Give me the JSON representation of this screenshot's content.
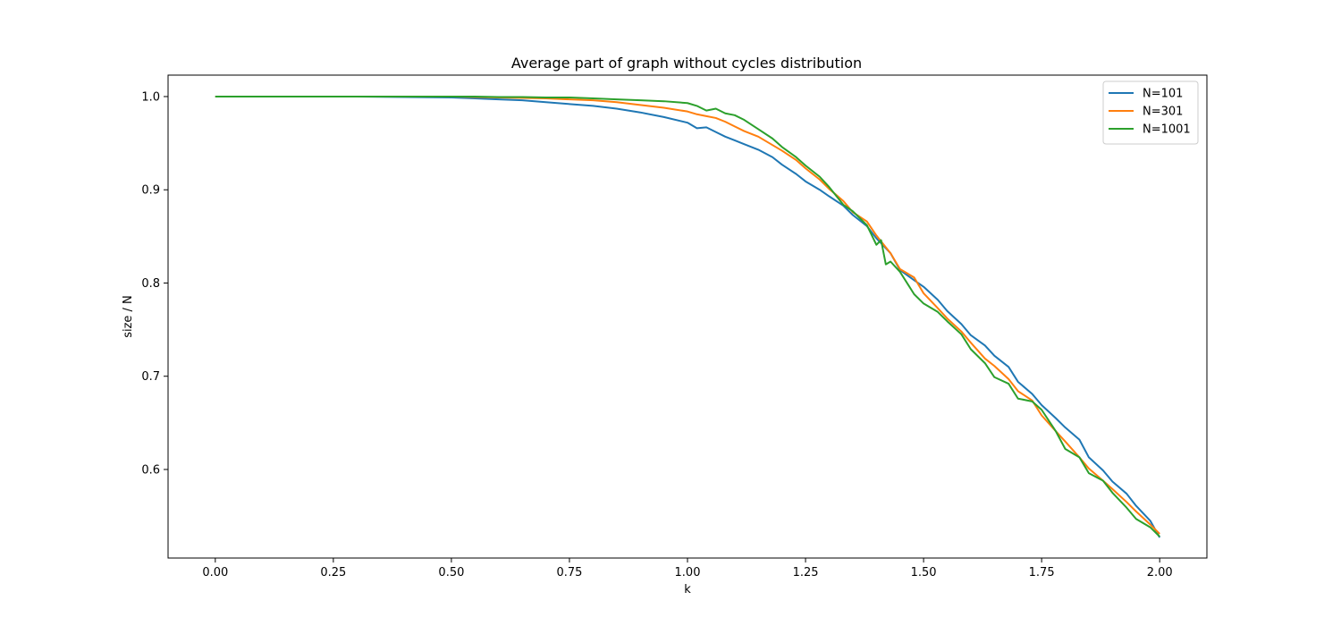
{
  "chart_data": {
    "type": "line",
    "title": "Average part of graph without cycles distribution",
    "xlabel": "k",
    "ylabel": "size / N",
    "xlim": [
      -0.1,
      2.1
    ],
    "ylim": [
      0.505,
      1.023
    ],
    "xticks": [
      0.0,
      0.25,
      0.5,
      0.75,
      1.0,
      1.25,
      1.5,
      1.75,
      2.0
    ],
    "xtick_labels": [
      "0.00",
      "0.25",
      "0.50",
      "0.75",
      "1.00",
      "1.25",
      "1.50",
      "1.75",
      "2.00"
    ],
    "yticks": [
      0.6,
      0.7,
      0.8,
      0.9,
      1.0
    ],
    "ytick_labels": [
      "0.6",
      "0.7",
      "0.8",
      "0.9",
      "1.0"
    ],
    "grid": false,
    "legend_position": "top-right",
    "series": [
      {
        "name": "N=101",
        "color": "#1f77b4",
        "x": [
          0.0,
          0.1,
          0.2,
          0.3,
          0.4,
          0.5,
          0.55,
          0.6,
          0.65,
          0.7,
          0.75,
          0.8,
          0.85,
          0.9,
          0.95,
          1.0,
          1.02,
          1.04,
          1.06,
          1.08,
          1.1,
          1.12,
          1.15,
          1.18,
          1.2,
          1.23,
          1.25,
          1.28,
          1.3,
          1.33,
          1.35,
          1.38,
          1.4,
          1.43,
          1.45,
          1.48,
          1.5,
          1.53,
          1.55,
          1.58,
          1.6,
          1.63,
          1.65,
          1.68,
          1.7,
          1.73,
          1.75,
          1.78,
          1.8,
          1.83,
          1.85,
          1.88,
          1.9,
          1.93,
          1.95,
          1.98,
          2.0
        ],
        "y": [
          1.0,
          1.0,
          1.0,
          1.0,
          0.9995,
          0.999,
          0.998,
          0.997,
          0.996,
          0.994,
          0.992,
          0.99,
          0.987,
          0.983,
          0.978,
          0.972,
          0.966,
          0.967,
          0.962,
          0.957,
          0.953,
          0.949,
          0.943,
          0.935,
          0.927,
          0.917,
          0.909,
          0.9,
          0.893,
          0.883,
          0.873,
          0.861,
          0.848,
          0.832,
          0.814,
          0.803,
          0.796,
          0.782,
          0.77,
          0.756,
          0.744,
          0.733,
          0.722,
          0.71,
          0.694,
          0.681,
          0.669,
          0.655,
          0.645,
          0.632,
          0.613,
          0.599,
          0.587,
          0.574,
          0.561,
          0.545,
          0.527
        ]
      },
      {
        "name": "N=301",
        "color": "#ff7f0e",
        "x": [
          0.0,
          0.1,
          0.2,
          0.3,
          0.4,
          0.5,
          0.55,
          0.6,
          0.65,
          0.7,
          0.75,
          0.8,
          0.85,
          0.9,
          0.95,
          1.0,
          1.02,
          1.04,
          1.06,
          1.08,
          1.1,
          1.12,
          1.15,
          1.18,
          1.2,
          1.23,
          1.25,
          1.28,
          1.3,
          1.33,
          1.35,
          1.38,
          1.4,
          1.43,
          1.45,
          1.48,
          1.5,
          1.53,
          1.55,
          1.58,
          1.6,
          1.63,
          1.65,
          1.68,
          1.7,
          1.73,
          1.75,
          1.78,
          1.8,
          1.83,
          1.85,
          1.88,
          1.9,
          1.93,
          1.95,
          1.98,
          2.0
        ],
        "y": [
          1.0,
          1.0,
          1.0,
          1.0,
          1.0,
          1.0,
          0.9995,
          0.999,
          0.9985,
          0.998,
          0.997,
          0.996,
          0.994,
          0.991,
          0.988,
          0.984,
          0.981,
          0.979,
          0.977,
          0.973,
          0.968,
          0.963,
          0.957,
          0.948,
          0.942,
          0.932,
          0.923,
          0.911,
          0.901,
          0.888,
          0.876,
          0.866,
          0.851,
          0.832,
          0.815,
          0.806,
          0.789,
          0.773,
          0.762,
          0.748,
          0.736,
          0.719,
          0.711,
          0.697,
          0.684,
          0.674,
          0.658,
          0.641,
          0.63,
          0.613,
          0.601,
          0.588,
          0.579,
          0.565,
          0.555,
          0.541,
          0.531
        ]
      },
      {
        "name": "N=1001",
        "color": "#2ca02c",
        "x": [
          0.0,
          0.1,
          0.2,
          0.3,
          0.4,
          0.5,
          0.55,
          0.6,
          0.65,
          0.7,
          0.75,
          0.8,
          0.85,
          0.9,
          0.95,
          1.0,
          1.02,
          1.04,
          1.06,
          1.08,
          1.1,
          1.12,
          1.15,
          1.18,
          1.2,
          1.23,
          1.25,
          1.28,
          1.3,
          1.33,
          1.35,
          1.38,
          1.4,
          1.41,
          1.42,
          1.43,
          1.45,
          1.48,
          1.5,
          1.53,
          1.55,
          1.58,
          1.6,
          1.63,
          1.65,
          1.68,
          1.7,
          1.73,
          1.75,
          1.78,
          1.8,
          1.83,
          1.85,
          1.88,
          1.9,
          1.93,
          1.95,
          1.98,
          2.0
        ],
        "y": [
          1.0,
          1.0,
          1.0,
          1.0,
          1.0,
          1.0,
          1.0,
          0.9995,
          0.9995,
          0.999,
          0.999,
          0.998,
          0.997,
          0.996,
          0.995,
          0.993,
          0.99,
          0.985,
          0.987,
          0.982,
          0.98,
          0.975,
          0.965,
          0.955,
          0.946,
          0.935,
          0.926,
          0.914,
          0.903,
          0.884,
          0.877,
          0.862,
          0.841,
          0.846,
          0.82,
          0.823,
          0.812,
          0.788,
          0.778,
          0.769,
          0.759,
          0.745,
          0.729,
          0.714,
          0.699,
          0.692,
          0.676,
          0.673,
          0.664,
          0.641,
          0.622,
          0.613,
          0.596,
          0.588,
          0.575,
          0.559,
          0.547,
          0.538,
          0.528
        ]
      }
    ]
  }
}
